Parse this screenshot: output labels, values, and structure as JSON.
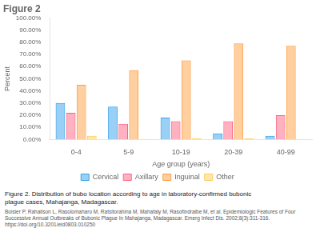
{
  "chart_data": {
    "type": "bar",
    "title": "Figure 2",
    "categories": [
      "0-4",
      "5-9",
      "10-19",
      "20-39",
      "40-99"
    ],
    "series": [
      {
        "name": "Cervical",
        "values": [
          30.0,
          27.0,
          18.0,
          5.0,
          3.0
        ]
      },
      {
        "name": "Axillary",
        "values": [
          22.0,
          13.0,
          15.0,
          15.0,
          20.0
        ]
      },
      {
        "name": "Inguinal",
        "values": [
          45.0,
          57.0,
          65.0,
          79.0,
          77.0
        ]
      },
      {
        "name": "Other",
        "values": [
          3.0,
          0.5,
          1.0,
          1.0,
          0.5
        ]
      }
    ],
    "xlabel": "Age group (years)",
    "ylabel": "Percent",
    "ylim": [
      0,
      100
    ],
    "yticks": [
      {
        "value": 0,
        "label": "0.00%"
      },
      {
        "value": 10,
        "label": "10.00%"
      },
      {
        "value": 20,
        "label": "20.00%"
      },
      {
        "value": 30,
        "label": "30.00%"
      },
      {
        "value": 40,
        "label": "40.00%"
      },
      {
        "value": 50,
        "label": "50.00%"
      },
      {
        "value": 60,
        "label": "60.00%"
      },
      {
        "value": 70,
        "label": "70.00%"
      },
      {
        "value": 80,
        "label": "80.00%"
      },
      {
        "value": 90,
        "label": "90.00%"
      },
      {
        "value": 100,
        "label": "100.00%"
      }
    ],
    "grid": false,
    "legend": "bottom",
    "annotations": [
      "Figure 2. Distribution of bubo location according to age in laboratory-confirmed bubonic",
      "plague cases, Mahajanga, Madagascar.",
      "Boisier P, Rahalison L, Rasolomaharo M, Ratsitorahina M, Mahafaly M, Rasofindraibe M, et al. Epidemiologic Features of Four Successive Annual Outbreaks of Bubonic Plague In Mahajanga, Madagascar. Emerg Infect Dis. 2002;8(3):311-316. https://doi.org/10.3201/eid0803.010250"
    ]
  }
}
